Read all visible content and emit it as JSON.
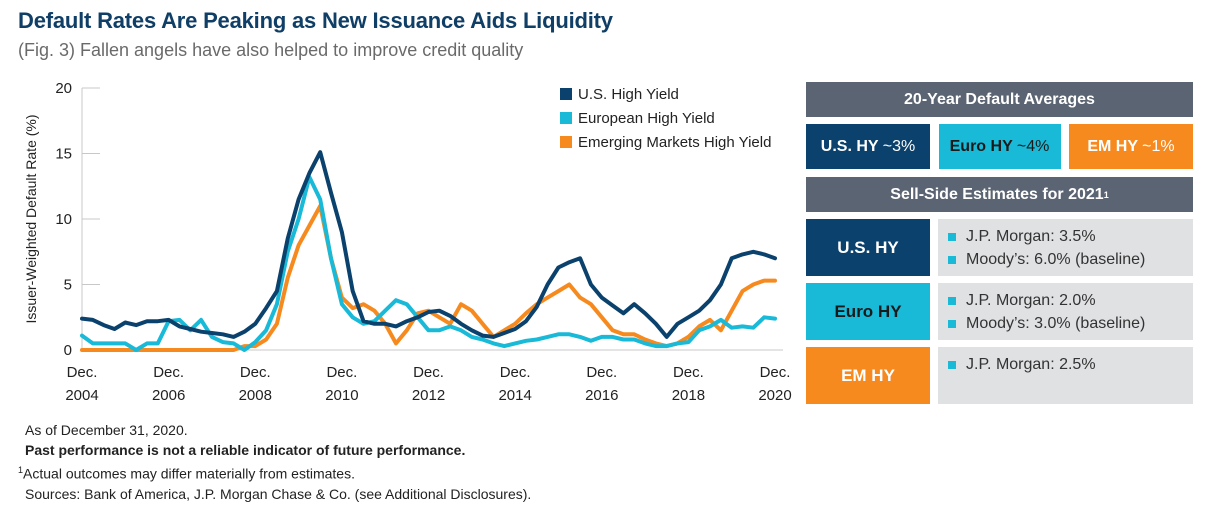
{
  "header": {
    "title": "Default Rates Are Peaking as New Issuance Aids Liquidity",
    "subtitle": "(Fig. 3) Fallen angels have also helped to improve credit quality"
  },
  "colors": {
    "us": "#0a416d",
    "euro": "#19b9d8",
    "em": "#f68a1f",
    "header_gray": "#5b6472",
    "list_bg": "#dfe1e3"
  },
  "chart_data": {
    "type": "line",
    "title": "",
    "xlabel": "",
    "ylabel": "Issuer-Weighted Default Rate (%)",
    "ylim": [
      0,
      20
    ],
    "yticks": [
      0,
      5,
      10,
      15,
      20
    ],
    "xticks": [
      {
        "line1": "Dec.",
        "line2": "2004"
      },
      {
        "line1": "Dec.",
        "line2": "2006"
      },
      {
        "line1": "Dec.",
        "line2": "2008"
      },
      {
        "line1": "Dec.",
        "line2": "2010"
      },
      {
        "line1": "Dec.",
        "line2": "2012"
      },
      {
        "line1": "Dec.",
        "line2": "2014"
      },
      {
        "line1": "Dec.",
        "line2": "2016"
      },
      {
        "line1": "Dec.",
        "line2": "2018"
      },
      {
        "line1": "Dec.",
        "line2": "2020"
      }
    ],
    "x_range": [
      "Dec 2004",
      "Dec 2020"
    ],
    "x_frequency": "quarterly",
    "legend_position": "top-right",
    "grid": false,
    "series": [
      {
        "name": "U.S. High Yield",
        "key": "us",
        "values": [
          2.4,
          2.3,
          1.9,
          1.6,
          2.1,
          1.9,
          2.2,
          2.2,
          2.3,
          1.8,
          1.6,
          1.4,
          1.3,
          1.2,
          1.0,
          1.4,
          2.0,
          3.2,
          4.5,
          8.5,
          11.5,
          13.5,
          15.1,
          12.0,
          9.0,
          4.5,
          2.2,
          2.0,
          2.0,
          1.8,
          2.2,
          2.5,
          2.9,
          3.0,
          2.6,
          2.0,
          1.5,
          1.1,
          1.0,
          1.3,
          1.6,
          2.2,
          3.3,
          5.0,
          6.3,
          6.7,
          7.0,
          5.0,
          4.0,
          3.4,
          2.8,
          3.5,
          2.8,
          2.0,
          1.0,
          2.0,
          2.5,
          3.0,
          3.8,
          5.0,
          7.0,
          7.3,
          7.5,
          7.3,
          7.0
        ]
      },
      {
        "name": "European High Yield",
        "key": "euro",
        "values": [
          1.1,
          0.5,
          0.5,
          0.5,
          0.5,
          0.0,
          0.5,
          0.5,
          2.2,
          2.3,
          1.5,
          2.3,
          1.0,
          0.6,
          0.5,
          0.0,
          0.6,
          1.5,
          3.5,
          7.5,
          10.0,
          13.2,
          11.5,
          7.0,
          3.5,
          2.5,
          2.0,
          2.2,
          3.0,
          3.8,
          3.5,
          2.5,
          1.5,
          1.5,
          1.8,
          1.5,
          1.0,
          0.8,
          0.5,
          0.3,
          0.5,
          0.7,
          0.8,
          1.0,
          1.2,
          1.2,
          1.0,
          0.7,
          1.0,
          1.0,
          0.8,
          0.8,
          0.5,
          0.3,
          0.3,
          0.5,
          0.6,
          1.5,
          1.8,
          2.3,
          1.7,
          1.8,
          1.7,
          2.5,
          2.4
        ]
      },
      {
        "name": "Emerging Markets High Yield",
        "key": "em",
        "values": [
          0,
          0,
          0,
          0,
          0,
          0,
          0,
          0,
          0,
          0,
          0,
          0,
          0,
          0,
          0,
          0.3,
          0.3,
          0.8,
          2.0,
          5.5,
          8.0,
          9.5,
          11.0,
          7.0,
          4.0,
          3.2,
          3.5,
          3.0,
          2.0,
          0.5,
          1.5,
          2.8,
          3.0,
          2.5,
          2.0,
          3.5,
          3.0,
          2.0,
          1.0,
          1.5,
          2.0,
          2.8,
          3.5,
          4.0,
          4.5,
          5.0,
          4.0,
          3.5,
          2.5,
          1.5,
          1.2,
          1.2,
          0.8,
          0.5,
          0.3,
          0.5,
          1.0,
          1.8,
          2.3,
          1.5,
          3.0,
          4.5,
          5.0,
          5.3,
          5.3
        ]
      }
    ]
  },
  "legend": [
    {
      "label": "U.S. High Yield",
      "key": "us"
    },
    {
      "label": "European High Yield",
      "key": "euro"
    },
    {
      "label": "Emerging Markets High Yield",
      "key": "em"
    }
  ],
  "averages": {
    "heading": "20-Year Default Averages",
    "items": [
      {
        "prefix": "U.S. HY ",
        "value": "~3%",
        "key": "us"
      },
      {
        "prefix": "Euro HY ",
        "value": "~4%",
        "key": "euro"
      },
      {
        "prefix": "EM HY ",
        "value": "~1%",
        "key": "em"
      }
    ]
  },
  "estimates": {
    "heading": "Sell-Side Estimates for 2021",
    "heading_footnote": "1",
    "rows": [
      {
        "label": "U.S. HY",
        "key": "us",
        "items": [
          "J.P. Morgan: 3.5%",
          "Moody’s: 6.0% (baseline)"
        ]
      },
      {
        "label": "Euro HY",
        "key": "euro",
        "items": [
          "J.P. Morgan: 2.0%",
          "Moody’s: 3.0% (baseline)"
        ]
      },
      {
        "label": "EM HY",
        "key": "em",
        "items": [
          "J.P. Morgan: 2.5%"
        ]
      }
    ]
  },
  "notes": {
    "as_of": "As of December 31, 2020.",
    "disclaimer": "Past performance is not a reliable indicator of future performance.",
    "footnote_marker": "1",
    "footnote": "Actual outcomes may differ materially from estimates.",
    "sources": "Sources: Bank of America, J.P. Morgan Chase & Co. (see Additional Disclosures)."
  }
}
